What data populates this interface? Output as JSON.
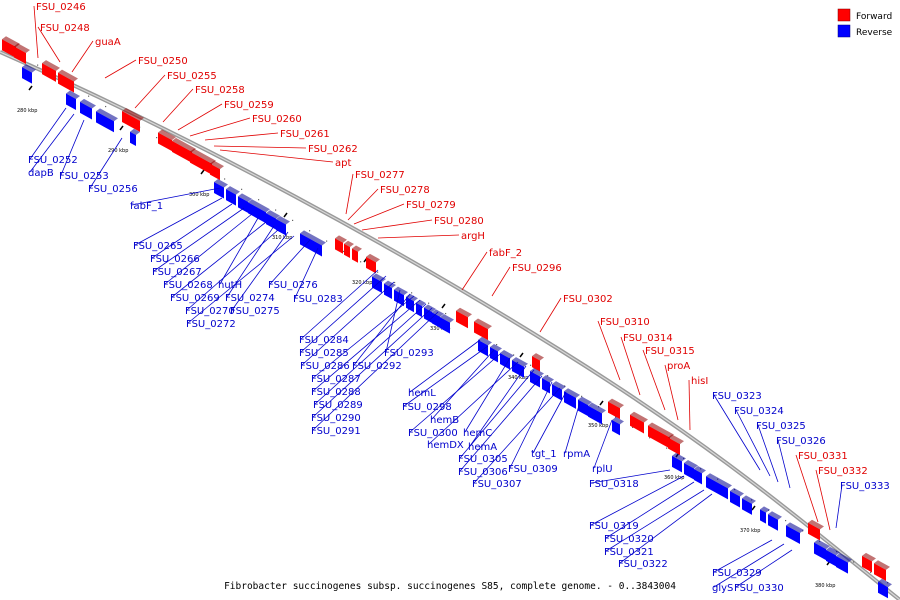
{
  "caption": "Fibrobacter succinogenes subsp. succinogenes S85, complete genome. - 0..3843004",
  "legend": [
    {
      "label": "Forward",
      "color": "#ff0000"
    },
    {
      "label": "Reverse",
      "color": "#0000ff"
    }
  ],
  "colors": {
    "forward": "#ff0000",
    "reverse": "#0000ff",
    "backbone": "#808080"
  },
  "scale_ticks": [
    "280 kbp",
    "290 kbp",
    "300 kbp",
    "310 kbp",
    "320 kbp",
    "330 kbp",
    "340 kbp",
    "350 kbp",
    "360 kbp",
    "370 kbp",
    "380 kbp"
  ],
  "forward_labels": [
    "FSU_0246",
    "FSU_0248",
    "guaA",
    "FSU_0250",
    "FSU_0255",
    "FSU_0258",
    "FSU_0259",
    "FSU_0260",
    "FSU_0261",
    "FSU_0262",
    "apt",
    "FSU_0277",
    "FSU_0278",
    "FSU_0279",
    "FSU_0280",
    "argH",
    "fabF_2",
    "FSU_0296",
    "FSU_0302",
    "FSU_0310",
    "FSU_0314",
    "FSU_0315",
    "proA",
    "hisI",
    "FSU_0331",
    "FSU_0332"
  ],
  "reverse_labels": [
    "FSU_0252",
    "dapB",
    "FSU_0253",
    "FSU_0256",
    "fabF_1",
    "FSU_0265",
    "FSU_0266",
    "FSU_0267",
    "FSU_0268",
    "hutH",
    "FSU_0269",
    "FSU_0274",
    "FSU_0270",
    "FSU_0275",
    "FSU_0272",
    "FSU_0276",
    "FSU_0283",
    "FSU_0284",
    "FSU_0285",
    "FSU_0286",
    "FSU_0293",
    "FSU_0292",
    "FSU_0287",
    "FSU_0288",
    "FSU_0289",
    "FSU_0290",
    "FSU_0291",
    "hemL",
    "FSU_0298",
    "hemB",
    "FSU_0300",
    "hemC",
    "hemDX",
    "hemA",
    "FSU_0305",
    "FSU_0306",
    "FSU_0309",
    "FSU_0307",
    "tgt_1",
    "rpmA",
    "rplU",
    "FSU_0318",
    "FSU_0323",
    "FSU_0324",
    "FSU_0325",
    "FSU_0326",
    "FSU_0333",
    "FSU_0319",
    "FSU_0320",
    "FSU_0321",
    "FSU_0322",
    "FSU_0329",
    "glyS",
    "FSU_0330"
  ]
}
